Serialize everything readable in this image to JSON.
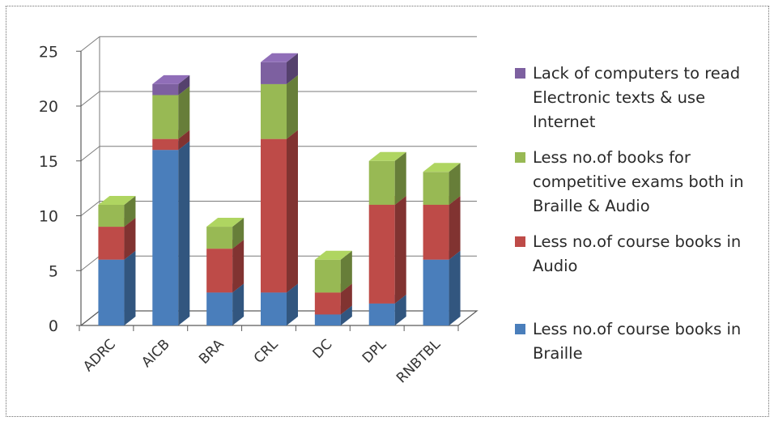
{
  "chart_data": {
    "type": "bar",
    "stacked": true,
    "style": "3d-column",
    "categories": [
      "ADRC",
      "AICB",
      "BRA",
      "CRL",
      "DC",
      "DPL",
      "RNBTBL"
    ],
    "series": [
      {
        "name": "Less no.of course books in Braille",
        "color": "#4a7ebb",
        "values": [
          6,
          16,
          3,
          3,
          1,
          2,
          6
        ]
      },
      {
        "name": "Less no.of course books in Audio",
        "color": "#be4b48",
        "values": [
          3,
          1,
          4,
          14,
          2,
          9,
          5
        ]
      },
      {
        "name": "Less no.of books for competitive exams both in Braille & Audio",
        "color": "#98b954",
        "values": [
          2,
          4,
          2,
          5,
          3,
          4,
          3
        ]
      },
      {
        "name": "Lack of computers to read Electronic texts & use Internet",
        "color": "#7d60a0",
        "values": [
          0,
          1,
          0,
          2,
          0,
          0,
          0
        ]
      }
    ],
    "yticks": [
      "0",
      "5",
      "10",
      "15",
      "20",
      "25"
    ],
    "ylim": [
      0,
      25
    ],
    "grid": true,
    "legend": "right",
    "legend_order": [
      3,
      2,
      1,
      0
    ]
  }
}
